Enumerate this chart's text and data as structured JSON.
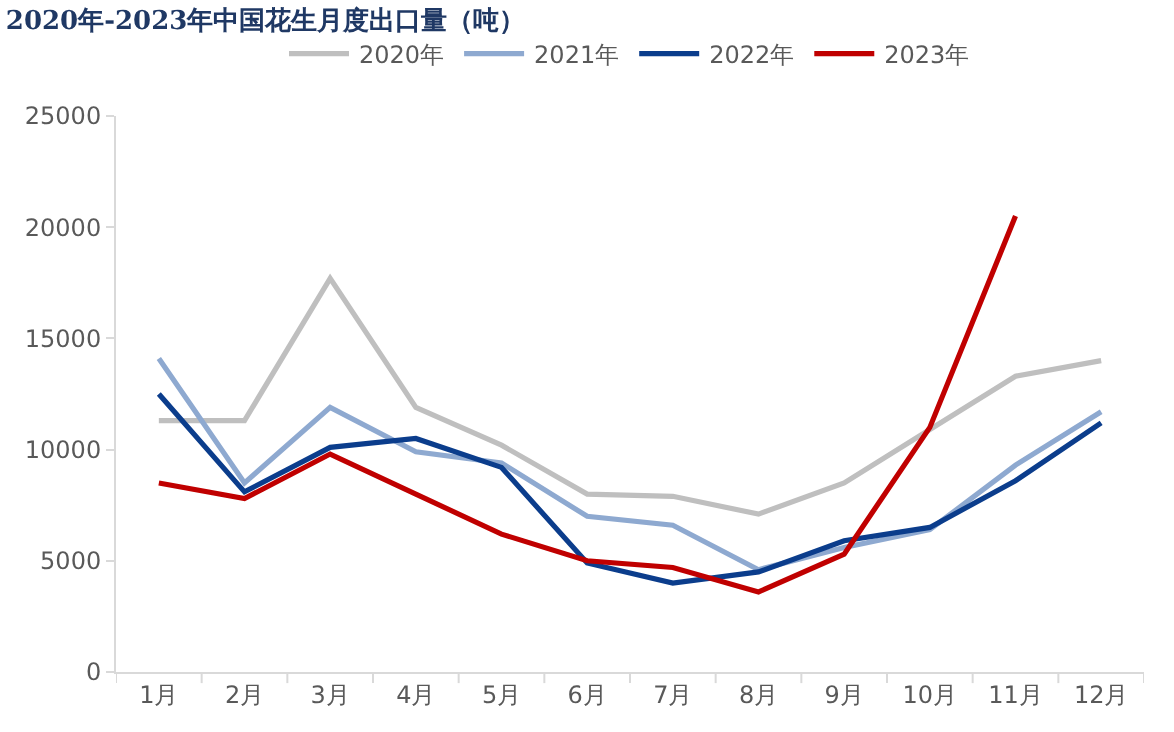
{
  "chart_data": {
    "type": "line",
    "title": "2020年-2023年中国花生月度出口量（吨）",
    "categories": [
      "1月",
      "2月",
      "3月",
      "4月",
      "5月",
      "6月",
      "7月",
      "8月",
      "9月",
      "10月",
      "11月",
      "12月"
    ],
    "series": [
      {
        "name": "2020年",
        "color": "#bfbfbf",
        "values": [
          11300,
          11300,
          17700,
          11900,
          10200,
          8000,
          7900,
          7100,
          8500,
          10900,
          13300,
          14000
        ]
      },
      {
        "name": "2021年",
        "color": "#8ea9d0",
        "values": [
          14100,
          8500,
          11900,
          9900,
          9400,
          7000,
          6600,
          4600,
          5600,
          6400,
          9300,
          11700
        ]
      },
      {
        "name": "2022年",
        "color": "#0b3d8c",
        "values": [
          12500,
          8100,
          10100,
          10500,
          9200,
          4900,
          4000,
          4500,
          5900,
          6500,
          8600,
          11200
        ]
      },
      {
        "name": "2023年",
        "color": "#c00000",
        "values": [
          8500,
          7800,
          9800,
          8000,
          6200,
          5000,
          4700,
          3600,
          5300,
          11000,
          20500,
          null
        ]
      }
    ],
    "ylim": [
      0,
      25000
    ],
    "yticks": [
      0,
      5000,
      10000,
      15000,
      20000,
      25000
    ],
    "legend": "top",
    "marker": "none",
    "line_style": "solid"
  }
}
